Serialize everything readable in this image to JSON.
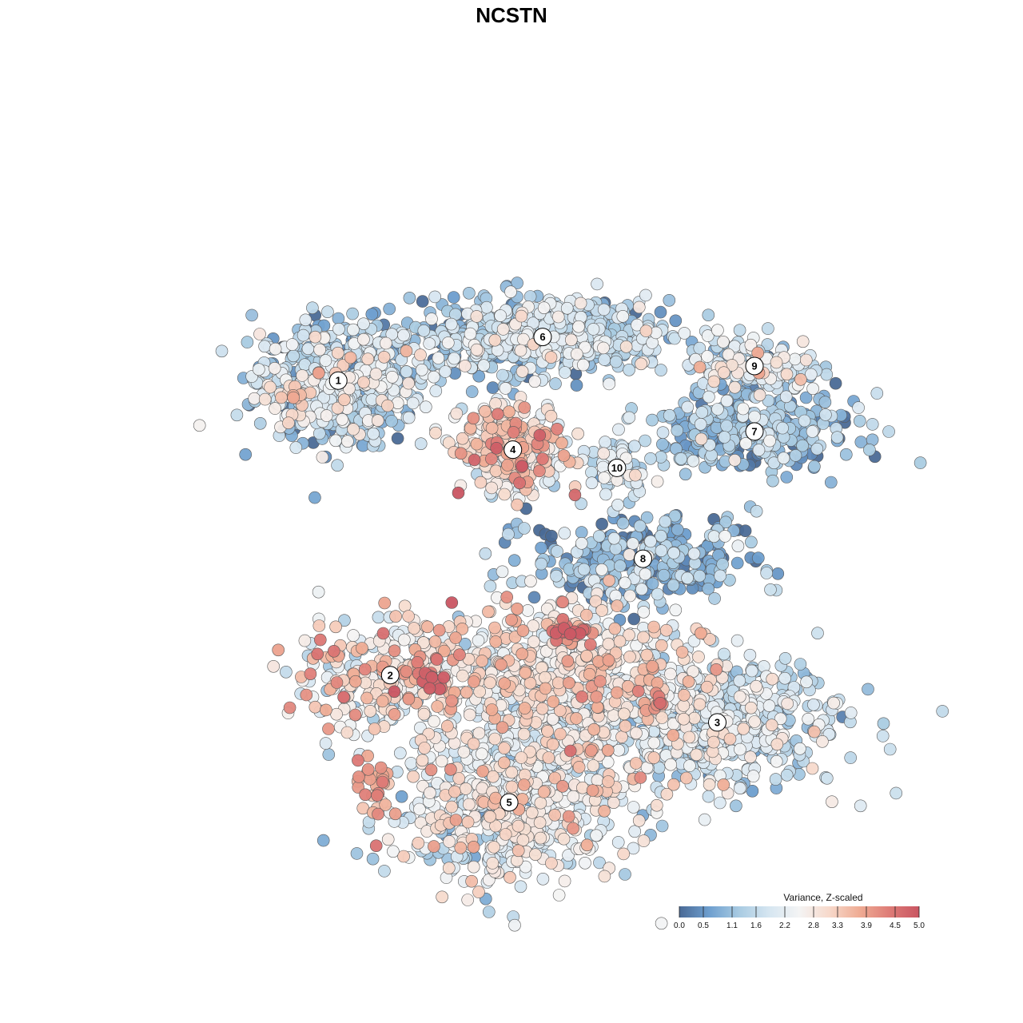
{
  "chart_data": {
    "type": "scatter",
    "title": "NCSTN",
    "grid": false,
    "colorbar": {
      "title": "Variance, Z-scaled",
      "placement": "bottom-right",
      "ticks": [
        "0.0",
        "0.5",
        "1.1",
        "1.6",
        "2.2",
        "2.8",
        "3.3",
        "3.9",
        "4.5",
        "5.0"
      ],
      "range": [
        0,
        5
      ],
      "colors": [
        "#4a6a96",
        "#6e9fcf",
        "#a9cbe2",
        "#d6e6f1",
        "#f4f4f4",
        "#f7d9cb",
        "#efac94",
        "#de7c77",
        "#c95562"
      ]
    },
    "clusters": [
      {
        "label": "1",
        "cx": -52,
        "cy": 36,
        "sx": 11,
        "sy": 8,
        "n": 620,
        "mean": 1.4,
        "sd": 0.8
      },
      {
        "label": "6",
        "cx": 3,
        "cy": 48,
        "sx": 17,
        "sy": 5,
        "n": 720,
        "mean": 1.3,
        "sd": 0.7
      },
      {
        "label": "4",
        "cx": -5,
        "cy": 17,
        "sx": 7,
        "sy": 6,
        "n": 280,
        "mean": 2.8,
        "sd": 0.9
      },
      {
        "label": "9",
        "cx": 60,
        "cy": 40,
        "sx": 9,
        "sy": 4,
        "n": 150,
        "mean": 1.8,
        "sd": 0.8
      },
      {
        "label": "7",
        "cx": 60,
        "cy": 22,
        "sx": 14,
        "sy": 5,
        "n": 330,
        "mean": 1.0,
        "sd": 0.6
      },
      {
        "label": "10",
        "cx": 23,
        "cy": 12,
        "sx": 4,
        "sy": 5,
        "n": 70,
        "mean": 1.6,
        "sd": 0.6
      },
      {
        "label": "8",
        "cx": 30,
        "cy": -13,
        "sx": 15,
        "sy": 6,
        "n": 300,
        "mean": 0.8,
        "sd": 0.7
      },
      {
        "label": "2",
        "cx": -38,
        "cy": -45,
        "sx": 13,
        "sy": 8,
        "n": 300,
        "mean": 2.6,
        "sd": 0.9
      },
      {
        "label": "3",
        "cx": 50,
        "cy": -58,
        "sx": 17,
        "sy": 9,
        "n": 520,
        "mean": 1.8,
        "sd": 0.6
      },
      {
        "label": "5",
        "cx": -6,
        "cy": -80,
        "sx": 16,
        "sy": 11,
        "n": 620,
        "mean": 2.2,
        "sd": 0.7
      },
      {
        "label": "",
        "cx": 10,
        "cy": -48,
        "sx": 18,
        "sy": 12,
        "n": 720,
        "mean": 2.6,
        "sd": 0.7
      }
    ],
    "hotspots": [
      {
        "cx": -27,
        "cy": -46,
        "sx": 2,
        "sy": 1.5,
        "n": 20,
        "mean": 4.6
      },
      {
        "cx": 10,
        "cy": -33,
        "sx": 3,
        "sy": 2,
        "n": 25,
        "mean": 4.5
      },
      {
        "cx": 34,
        "cy": -52,
        "sx": 2,
        "sy": 2,
        "n": 8,
        "mean": 4.3
      },
      {
        "cx": -42,
        "cy": -75,
        "sx": 3,
        "sy": 5,
        "n": 30,
        "mean": 3.9
      },
      {
        "cx": -63,
        "cy": 33,
        "sx": 2,
        "sy": 2,
        "n": 12,
        "mean": 3.3
      }
    ],
    "xlim": [
      -100,
      100
    ],
    "ylim": [
      -100,
      100
    ]
  }
}
